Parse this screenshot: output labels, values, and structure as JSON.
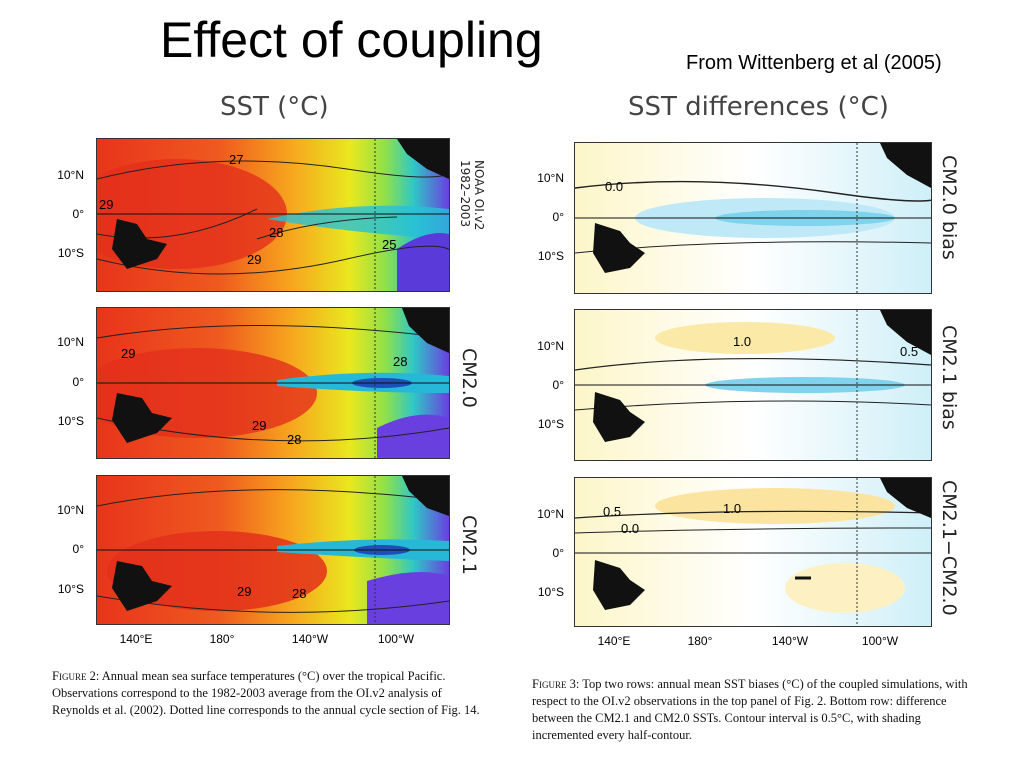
{
  "slide": {
    "title": "Effect of coupling",
    "source": "From Wittenberg et al (2005)"
  },
  "left_figure": {
    "title": "SST (°C)",
    "panels": [
      {
        "side_label_line1": "NOAA OI.v2",
        "side_label_line2": "1982–2003",
        "contour_labels": [
          "27",
          "29",
          "28",
          "29",
          "25"
        ]
      },
      {
        "side_label": "CM2.0",
        "contour_labels": [
          "29",
          "28",
          "29",
          "28"
        ]
      },
      {
        "side_label": "CM2.1",
        "contour_labels": [
          "29",
          "28"
        ]
      }
    ],
    "lat_ticks": [
      "10°N",
      "0°",
      "10°S"
    ],
    "lon_ticks": [
      "140°E",
      "180°",
      "140°W",
      "100°W"
    ],
    "caption_fig": "Figure 2:",
    "caption_text": " Annual mean sea surface temperatures (°C) over the tropical Pacific. Observations correspond to the 1982-2003 average from the OI.v2 analysis of Reynolds et al. (2002). Dotted line corresponds to the annual cycle section of Fig. 14."
  },
  "right_figure": {
    "title": "SST differences (°C)",
    "panels": [
      {
        "side_label": "CM2.0 bias",
        "contour_labels": [
          "0.0"
        ]
      },
      {
        "side_label": "CM2.1 bias",
        "contour_labels": [
          "1.0",
          "0.5"
        ]
      },
      {
        "side_label": "CM2.1−CM2.0",
        "contour_labels": [
          "0.5",
          "1.0",
          "0.0"
        ]
      }
    ],
    "lat_ticks": [
      "10°N",
      "0°",
      "10°S"
    ],
    "lon_ticks": [
      "140°E",
      "180°",
      "140°W",
      "100°W"
    ],
    "caption_fig": "Figure 3:",
    "caption_text": " Top two rows: annual mean SST biases (°C) of the coupled simulations, with respect to the OI.v2 observations in the top panel of Fig. 2. Bottom row: difference between the CM2.1 and CM2.0 SSTs. Contour interval is 0.5°C, with shading incremented every half-contour."
  }
}
